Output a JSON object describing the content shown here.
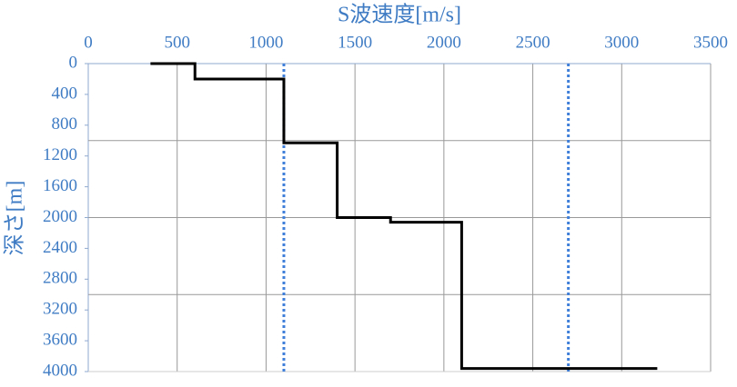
{
  "chart_data": {
    "type": "line",
    "x_label": "S波速度[m/s]",
    "y_label": "深さ[m]",
    "xlim": [
      0,
      3500
    ],
    "xticks": [
      0,
      500,
      1000,
      1500,
      2000,
      2500,
      3000,
      3500
    ],
    "ylim": [
      0,
      4000
    ],
    "yticks": [
      0,
      400,
      800,
      1200,
      1600,
      2000,
      2400,
      2800,
      3200,
      3600,
      4000
    ],
    "y_inverted": true,
    "ygrid": [
      1000,
      2000,
      3000
    ],
    "grid": true,
    "series": [
      {
        "color": "#000000",
        "x": [
          350,
          600,
          600,
          1100,
          1100,
          1400,
          1400,
          1700,
          1700,
          2100,
          2100,
          3200
        ],
        "values": [
          0,
          0,
          200,
          200,
          1030,
          1030,
          2000,
          2000,
          2060,
          2060,
          3960,
          3960
        ]
      }
    ],
    "reference_lines": {
      "color": "#3f7fd9",
      "x": [
        1100,
        2700
      ]
    }
  }
}
